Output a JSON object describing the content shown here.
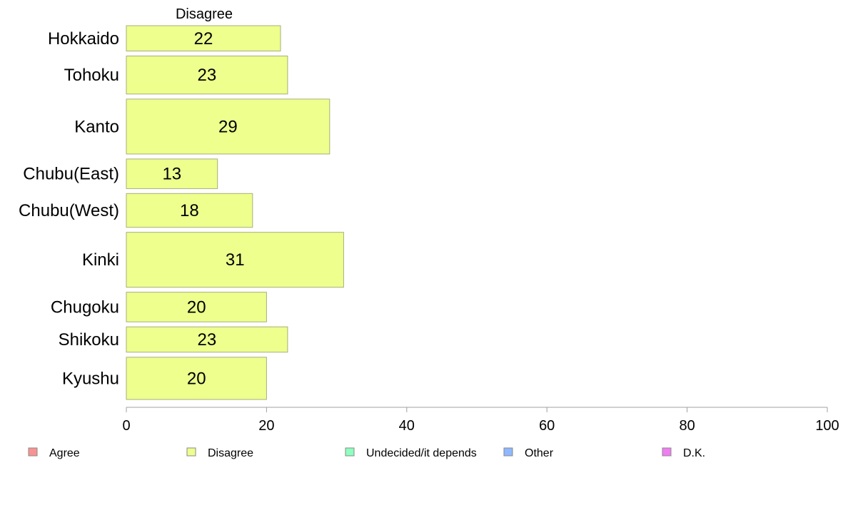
{
  "chart_data": {
    "type": "bar",
    "orientation": "horizontal",
    "title": "",
    "column_header": "Disagree",
    "categories": [
      "Hokkaido",
      "Tohoku",
      "Kanto",
      "Chubu(East)",
      "Chubu(West)",
      "Kinki",
      "Chugoku",
      "Shikoku",
      "Kyushu"
    ],
    "series": [
      {
        "name": "Disagree",
        "values": [
          22,
          23,
          29,
          13,
          18,
          31,
          20,
          23,
          20
        ]
      }
    ],
    "data_labels": [
      "22",
      "23",
      "29",
      "13",
      "18",
      "31",
      "20",
      "23",
      "20"
    ],
    "row_weights": [
      6,
      9,
      13,
      7,
      8,
      13,
      7,
      6,
      10
    ],
    "xlim": [
      0,
      100
    ],
    "x_ticks": [
      0,
      20,
      40,
      60,
      80,
      100
    ],
    "x_tick_labels": [
      "0",
      "20",
      "40",
      "60",
      "80",
      "100"
    ],
    "xlabel": "",
    "ylabel": "",
    "grid": false,
    "legend_position": "bottom",
    "legend": [
      {
        "label": "Agree",
        "color": "#F89392"
      },
      {
        "label": "Disagree",
        "color": "#EEFF8E"
      },
      {
        "label": "Undecided/it depends",
        "color": "#8EFFBF"
      },
      {
        "label": "Other",
        "color": "#8EB8FF"
      },
      {
        "label": "D.K.",
        "color": "#F07DF2"
      }
    ],
    "bar_color": "#EEFF8E",
    "bar_stroke": "#A9AE7A",
    "axis_color": "#A0A0A0"
  }
}
